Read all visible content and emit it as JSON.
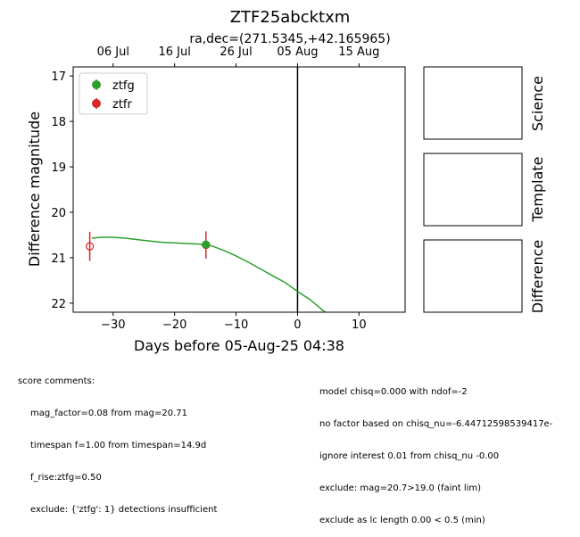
{
  "chart_data": {
    "type": "scatter",
    "title": "ZTF25abcktxm",
    "subtitle": "ra,dec=(271.5345,+42.165965)",
    "xlabel": "Days before 05-Aug-25 04:38",
    "ylabel": "Difference magnitude",
    "xlim": [
      -36.5,
      17.5
    ],
    "ylim": [
      22.2,
      16.8
    ],
    "x_ticks": [
      -30,
      -20,
      -10,
      0,
      10
    ],
    "y_ticks": [
      17,
      18,
      19,
      20,
      21,
      22
    ],
    "top_ticks": [
      {
        "label": "06 Jul",
        "x": -30
      },
      {
        "label": "16 Jul",
        "x": -20
      },
      {
        "label": "26 Jul",
        "x": -10
      },
      {
        "label": "05 Aug",
        "x": 0
      },
      {
        "label": "15 Aug",
        "x": 10
      }
    ],
    "vline_x": 0,
    "legend_position": "upper-left",
    "series": [
      {
        "name": "ztfg",
        "color": "#2ca02c",
        "points": [
          {
            "x": -14.9,
            "y": 20.71,
            "yerr": 0.05,
            "filled": true
          }
        ],
        "model": {
          "x": [
            -33.5,
            -32,
            -30,
            -28,
            -25,
            -22,
            -19,
            -16,
            -14,
            -12,
            -10,
            -8,
            -6,
            -4,
            -2,
            0,
            2,
            4.5
          ],
          "y": [
            20.57,
            20.55,
            20.55,
            20.57,
            20.62,
            20.66,
            20.68,
            20.7,
            20.74,
            20.84,
            20.96,
            21.1,
            21.25,
            21.4,
            21.55,
            21.74,
            21.92,
            22.2
          ]
        }
      },
      {
        "name": "ztfr",
        "color": "#d62728",
        "points": [
          {
            "x": -33.8,
            "y": 20.75,
            "yerr": 0.32,
            "filled": false
          },
          {
            "x": -14.9,
            "y": 20.72,
            "yerr": 0.3,
            "filled": false
          }
        ]
      }
    ]
  },
  "panels": {
    "science_label": "Science",
    "template_label": "Template",
    "difference_label": "Difference"
  },
  "score_comments": {
    "header": "score comments:",
    "left": [
      "mag_factor=0.08 from mag=20.71",
      "timespan f=1.00 from timespan=14.9d",
      "f_rise:ztfg=0.50",
      "exclude: {'ztfg': 1} detections insufficient"
    ],
    "right": [
      "model chisq=0.000 with ndof=-2",
      "no factor based on chisq_nu=-6.44712598539417e-",
      "ignore interest 0.01 from chisq_nu -0.00",
      "exclude: mag=20.7>19.0 (faint lim)",
      "exclude as lc length 0.00 < 0.5 (min)"
    ]
  }
}
